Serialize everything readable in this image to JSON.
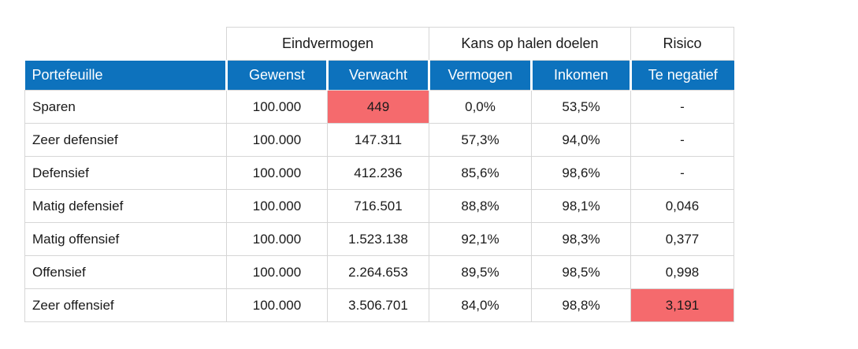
{
  "colors": {
    "header_blue": "#0d72bd",
    "highlight_red": "#f56a6d",
    "border_gray": "#d6d6d6",
    "header_text": "#ffffff",
    "body_text": "#1a1a1a"
  },
  "table": {
    "group_headers": {
      "eindvermogen": "Eindvermogen",
      "kans_op_halen_doelen": "Kans op halen doelen",
      "risico": "Risico"
    },
    "columns": {
      "portefeuille": "Portefeuille",
      "gewenst": "Gewenst",
      "verwacht": "Verwacht",
      "vermogen": "Vermogen",
      "inkomen": "Inkomen",
      "te_negatief": "Te negatief"
    },
    "rows": [
      {
        "name": "Sparen",
        "gewenst": "100.000",
        "verwacht": "449",
        "vermogen": "0,0%",
        "inkomen": "53,5%",
        "te_negatief": "-",
        "verwacht_highlighted": true,
        "risico_highlighted": false
      },
      {
        "name": "Zeer defensief",
        "gewenst": "100.000",
        "verwacht": "147.311",
        "vermogen": "57,3%",
        "inkomen": "94,0%",
        "te_negatief": "-",
        "verwacht_highlighted": false,
        "risico_highlighted": false
      },
      {
        "name": "Defensief",
        "gewenst": "100.000",
        "verwacht": "412.236",
        "vermogen": "85,6%",
        "inkomen": "98,6%",
        "te_negatief": "-",
        "verwacht_highlighted": false,
        "risico_highlighted": false
      },
      {
        "name": "Matig defensief",
        "gewenst": "100.000",
        "verwacht": "716.501",
        "vermogen": "88,8%",
        "inkomen": "98,1%",
        "te_negatief": "0,046",
        "verwacht_highlighted": false,
        "risico_highlighted": false
      },
      {
        "name": "Matig offensief",
        "gewenst": "100.000",
        "verwacht": "1.523.138",
        "vermogen": "92,1%",
        "inkomen": "98,3%",
        "te_negatief": "0,377",
        "verwacht_highlighted": false,
        "risico_highlighted": false
      },
      {
        "name": "Offensief",
        "gewenst": "100.000",
        "verwacht": "2.264.653",
        "vermogen": "89,5%",
        "inkomen": "98,5%",
        "te_negatief": "0,998",
        "verwacht_highlighted": false,
        "risico_highlighted": false
      },
      {
        "name": "Zeer offensief",
        "gewenst": "100.000",
        "verwacht": "3.506.701",
        "vermogen": "84,0%",
        "inkomen": "98,8%",
        "te_negatief": "3,191",
        "verwacht_highlighted": false,
        "risico_highlighted": true
      }
    ]
  }
}
